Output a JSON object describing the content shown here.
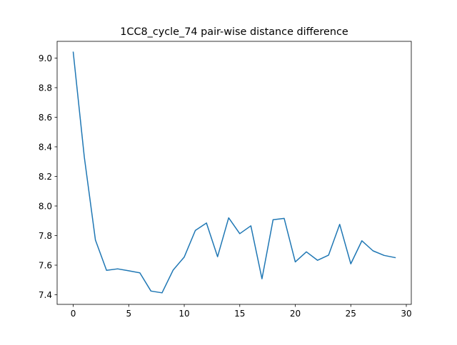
{
  "chart_data": {
    "type": "line",
    "title": "1CC8_cycle_74 pair-wise distance difference",
    "xlabel": "",
    "ylabel": "",
    "xlim": [
      -1.45,
      30.45
    ],
    "ylim": [
      7.335,
      9.113
    ],
    "grid": false,
    "legend": "none",
    "line_color": "#1f77b4",
    "x_ticks": [
      0,
      5,
      10,
      15,
      20,
      25,
      30
    ],
    "x_tick_labels": [
      "0",
      "5",
      "10",
      "15",
      "20",
      "25",
      "30"
    ],
    "y_ticks": [
      7.4,
      7.6,
      7.8,
      8.0,
      8.2,
      8.4,
      8.6,
      8.8,
      9.0
    ],
    "y_tick_labels": [
      "7.4",
      "7.6",
      "7.8",
      "8.0",
      "8.2",
      "8.4",
      "8.6",
      "8.8",
      "9.0"
    ],
    "series": [
      {
        "x": [
          0,
          1,
          2,
          3,
          4,
          5,
          6,
          7,
          8,
          9,
          10,
          11,
          12,
          13,
          14,
          15,
          16,
          17,
          18,
          19,
          20,
          21,
          22,
          23,
          24,
          25,
          26,
          27,
          28,
          29
        ],
        "values": [
          9.04,
          8.33,
          7.77,
          7.565,
          7.575,
          7.562,
          7.548,
          7.425,
          7.413,
          7.567,
          7.655,
          7.835,
          7.885,
          7.657,
          7.92,
          7.813,
          7.866,
          7.508,
          7.907,
          7.916,
          7.622,
          7.69,
          7.633,
          7.668,
          7.876,
          7.609,
          7.765,
          7.697,
          7.666,
          7.651
        ]
      }
    ]
  }
}
